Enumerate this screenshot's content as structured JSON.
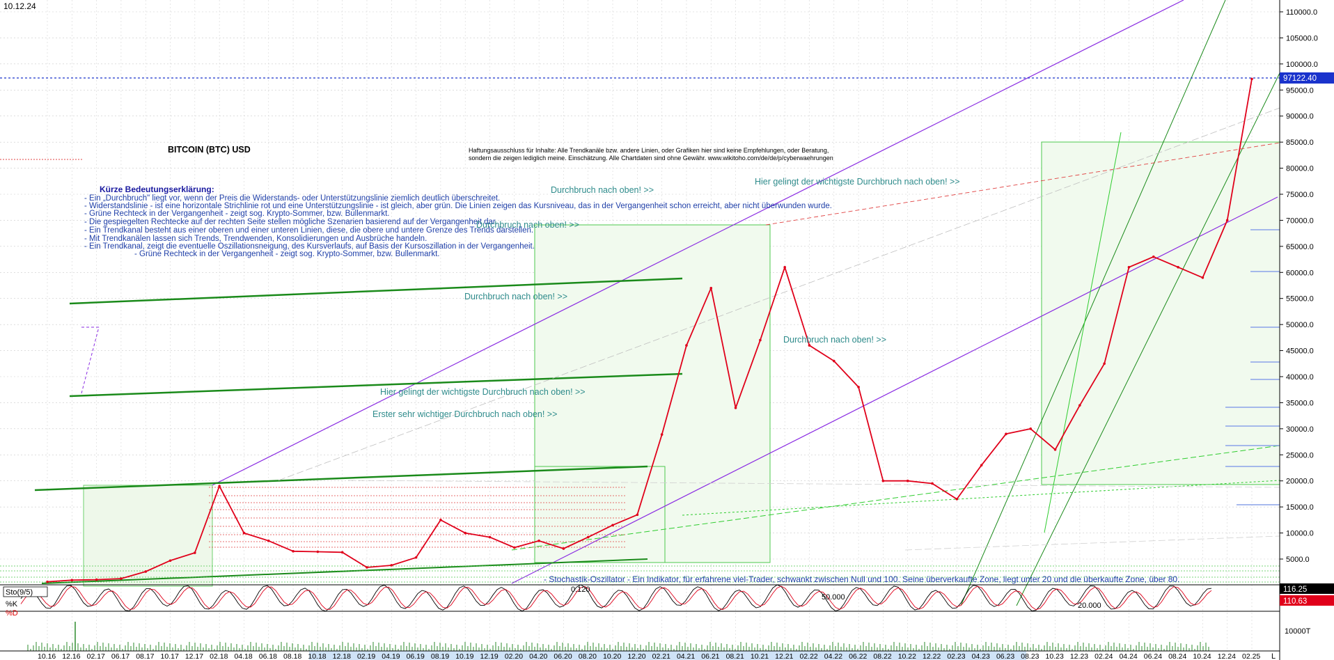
{
  "date_label": "10.12.24",
  "title": "BITCOIN (BTC) USD",
  "disclaimer": [
    "Haftungsausschluss für Inhalte: Alle Trendkanäle bzw. andere Linien, oder Grafiken hier sind keine Empfehlungen, oder Beratung,",
    "sondern die zeigen lediglich meine. Einschätzung. Alle Chartdaten sind ohne Gewähr. www.wikitoho.com/de/de/p/cyberwaehrungen"
  ],
  "legend_heading": "Kürze Bedeutungserklärung:",
  "legend_lines": [
    "- Ein „Durchbruch\" liegt vor, wenn der Preis die Widerstands- oder Unterstützungslinie ziemlich deutlich überschreitet.",
    "- Widerstandslinie - ist eine horizontale Strichlinie rot und eine Unterstützungslinie - ist gleich, aber grün. Die Linien zeigen das Kursniveau, das in der Vergangenheit schon erreicht, aber nicht überwunden wurde.",
    "- Grüne Rechteck in der Vergangenheit - zeigt sog. Krypto-Sommer, bzw. Bullenmarkt.",
    "- Die gespiegelten Rechtecke auf der rechten Seite stellen mögliche Szenarien basierend auf der Vergangenheit dar.",
    "- Ein Trendkanal besteht aus einer oberen und einer unteren Linien, diese, die obere und untere Grenze des Trends darstellen.",
    "- Mit Trendkanälen lassen sich Trends, Trendwenden, Konsolidierungen und Ausbrüche handeln.",
    "- Ein Trendkanal, zeigt die eventuelle Oszillationsneigung, des Kursverlaufs, auf Basis der Kursoszillation in der Vergangenheit.",
    "- Grüne Rechteck in der Vergangenheit - zeigt sog. Krypto-Sommer, bzw. Bullenmarkt."
  ],
  "annotations": [
    {
      "text": "Durchbruch nach oben! >>",
      "x": 791,
      "y": 277
    },
    {
      "text": "Durchbruch nach oben! >>",
      "x": 684,
      "y": 327
    },
    {
      "text": "Durchbruch nach oben! >>",
      "x": 667,
      "y": 430
    },
    {
      "text": "Hier gelingt der wichtigste Durchbruch nach oben! >>",
      "x": 1084,
      "y": 265
    },
    {
      "text": "Durchbruch nach oben! >>",
      "x": 1125,
      "y": 492
    },
    {
      "text": "Hier gelingt der wichtigste Durchbruch nach oben! >>",
      "x": 546,
      "y": 567
    },
    {
      "text": "Erster sehr wichtiger Durchbruch nach oben! >>",
      "x": 535,
      "y": 599
    }
  ],
  "stochastic_note": "- Stochastik-Oszillator - Ein Indikator, für erfahrene viel-Trader, schwankt zwischen Null und 100. Seine überverkaufte Zone, liegt unter 20 und die überkaufte Zone, über 80.",
  "indicator_label": "Sto(9/5)",
  "k_label": "%K",
  "d_label": "%D",
  "volume_label": "10000T",
  "end_label": "L",
  "price_marker": {
    "value": "97122.40",
    "color": "#1a33cc"
  },
  "sto_markers": [
    {
      "value": "116.25",
      "color": "#000000"
    },
    {
      "value": "110.63",
      "color": "#e0001a"
    }
  ],
  "sto_inline_labels": [
    "0.120",
    "50.000",
    "20.000"
  ],
  "y_ticks": [
    "110000.0",
    "105000.0",
    "100000.0",
    "95000.0",
    "90000.0",
    "85000.0",
    "80000.0",
    "75000.0",
    "70000.0",
    "65000.0",
    "60000.0",
    "55000.0",
    "50000.0",
    "45000.0",
    "40000.0",
    "35000.0",
    "30000.0",
    "25000.0",
    "20000.0",
    "15000.0",
    "10000.0",
    "5000.0"
  ],
  "x_ticks": [
    "10.16",
    "12.16",
    "02.17",
    "06.17",
    "08.17",
    "10.17",
    "12.17",
    "02.18",
    "04.18",
    "06.18",
    "08.18",
    "10.18",
    "12.18",
    "02.19",
    "04.19",
    "06.19",
    "08.19",
    "10.19",
    "12.19",
    "02.20",
    "04.20",
    "06.20",
    "08.20",
    "10.20",
    "12.20",
    "02.21",
    "04.21",
    "06.21",
    "08.21",
    "10.21",
    "12.21",
    "02.22",
    "04.22",
    "06.22",
    "08.22",
    "10.22",
    "12.22",
    "02.23",
    "04.23",
    "06.23",
    "08.23",
    "10.23",
    "12.23",
    "02.24",
    "04.24",
    "06.24",
    "08.24",
    "10.24",
    "12.24",
    "02.25"
  ],
  "chart_data": {
    "type": "line",
    "ylim": [
      0,
      112000
    ],
    "y_scale": "linear",
    "grid": true,
    "series": [
      {
        "name": "BITCOIN (BTC) USD",
        "color": "#e0001a",
        "x": [
          "10.16",
          "12.16",
          "02.17",
          "04.17",
          "06.17",
          "08.17",
          "10.17",
          "12.17",
          "02.18",
          "04.18",
          "06.18",
          "08.18",
          "10.18",
          "12.18",
          "02.19",
          "04.19",
          "06.19",
          "08.19",
          "10.19",
          "12.19",
          "02.20",
          "04.20",
          "06.20",
          "08.20",
          "10.20",
          "12.20",
          "02.21",
          "04.21",
          "06.21",
          "08.21",
          "10.21",
          "12.21",
          "02.22",
          "04.22",
          "06.22",
          "08.22",
          "10.22",
          "12.22",
          "02.23",
          "04.23",
          "06.23",
          "08.23",
          "10.23",
          "12.23",
          "02.24",
          "04.24",
          "06.24",
          "08.24",
          "10.24",
          "12.24"
        ],
        "values": [
          640,
          950,
          1050,
          1250,
          2600,
          4700,
          6200,
          19000,
          10000,
          8500,
          6500,
          6400,
          6300,
          3400,
          3800,
          5300,
          12500,
          10000,
          9200,
          7200,
          8500,
          7000,
          9200,
          11500,
          13500,
          28900,
          46000,
          57000,
          34000,
          47000,
          61000,
          46000,
          43000,
          38000,
          20000,
          20000,
          19500,
          16500,
          23000,
          29000,
          30000,
          26000,
          34500,
          42500,
          61000,
          63000,
          61000,
          59000,
          70000,
          97122
        ]
      }
    ]
  }
}
